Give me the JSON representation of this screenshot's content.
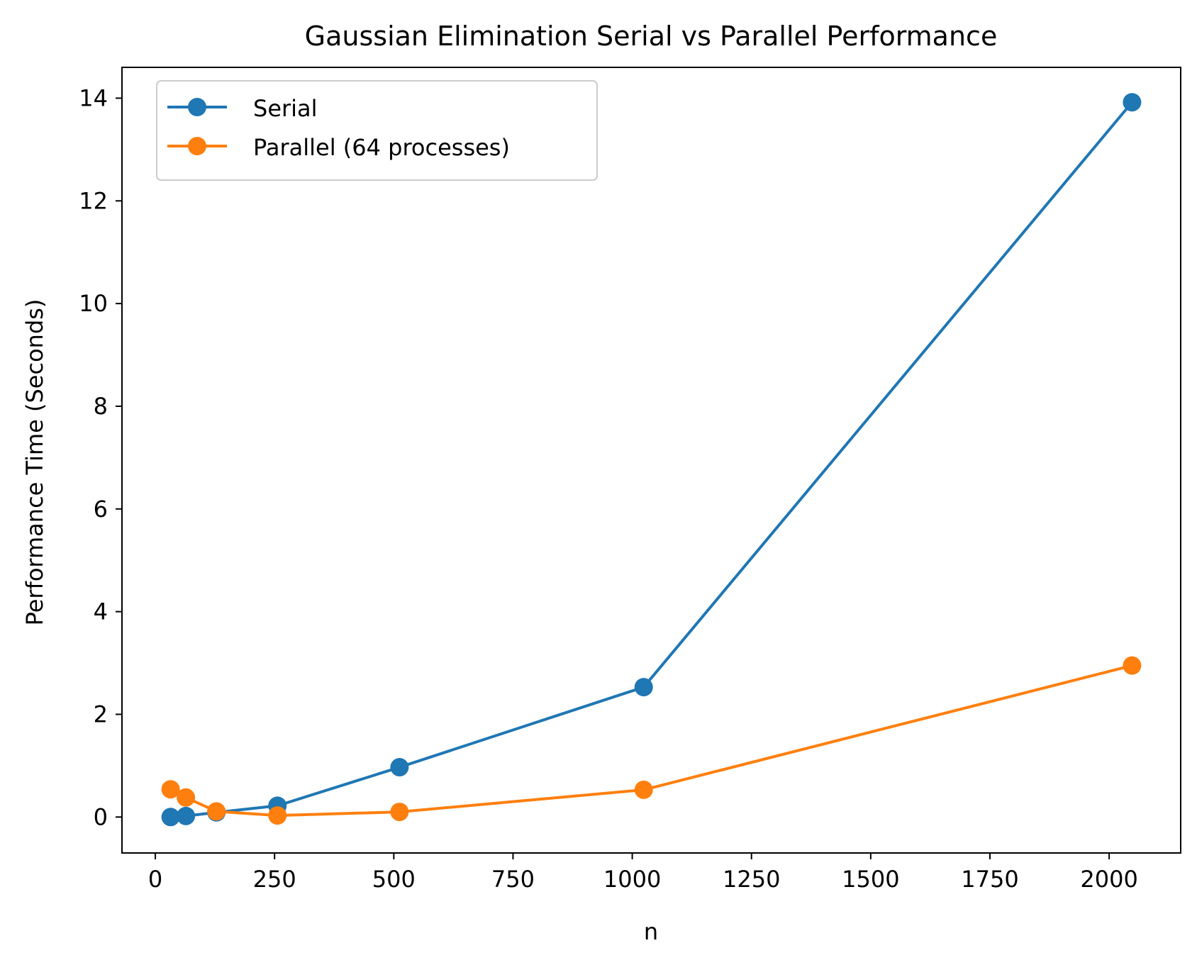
{
  "chart_data": {
    "type": "line",
    "title": "Gaussian Elimination Serial vs Parallel Performance",
    "xlabel": "n",
    "ylabel": "Performance Time (Seconds)",
    "xlim": [
      -70,
      2150
    ],
    "ylim": [
      -0.7,
      14.6
    ],
    "x_ticks": [
      0,
      250,
      500,
      750,
      1000,
      1250,
      1500,
      1750,
      2000
    ],
    "y_ticks": [
      0,
      2,
      4,
      6,
      8,
      10,
      12,
      14
    ],
    "grid": false,
    "legend_position": "upper-left",
    "series": [
      {
        "name": "Serial",
        "color": "#1f77b4",
        "x": [
          32,
          64,
          128,
          256,
          512,
          1024,
          2048
        ],
        "values": [
          0.0,
          0.02,
          0.09,
          0.22,
          0.97,
          2.53,
          13.92
        ]
      },
      {
        "name": "Parallel (64 processes)",
        "color": "#ff7f0e",
        "x": [
          32,
          64,
          128,
          256,
          512,
          1024,
          2048
        ],
        "values": [
          0.54,
          0.38,
          0.11,
          0.03,
          0.1,
          0.53,
          2.95
        ]
      }
    ]
  }
}
